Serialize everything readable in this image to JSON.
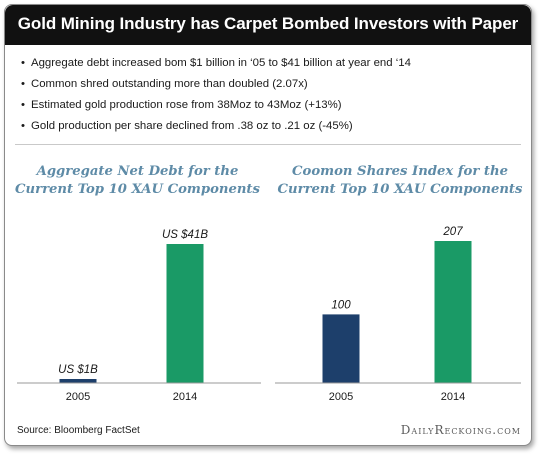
{
  "banner": {
    "title": "Gold Mining Industry has Carpet Bombed Investors with Paper"
  },
  "bullets": [
    "Aggregate debt increased bom $1 billion in ‘05 to $41 billion at year end ‘14",
    "Common shred outstanding more than doubled (2.07x)",
    "Estimated gold production rose from 38Moz to 43Moz (+13%)",
    "Gold  production per share declined from .38 oz to .21 oz (-45%)"
  ],
  "bullet_marker": "•",
  "chart_data": [
    {
      "type": "bar",
      "title": "Aggregate Net Debt for the Current Top 10 XAU Components",
      "categories": [
        "2005",
        "2014"
      ],
      "values": [
        1,
        41
      ],
      "data_labels": [
        "US $1B",
        "US $41B"
      ],
      "colors": [
        "#1d3f6b",
        "#1a9a66"
      ],
      "ylim": [
        0,
        41
      ]
    },
    {
      "type": "bar",
      "title": "Coomon Shares Index for the Current Top 10 XAU Components",
      "categories": [
        "2005",
        "2014"
      ],
      "values": [
        100,
        207
      ],
      "data_labels": [
        "100",
        "207"
      ],
      "colors": [
        "#1d3f6b",
        "#1a9a66"
      ],
      "ylim": [
        0,
        250
      ]
    }
  ],
  "footer": {
    "source": "Source: Bloomberg FactSet",
    "brand": "DailyReckoing.com"
  }
}
